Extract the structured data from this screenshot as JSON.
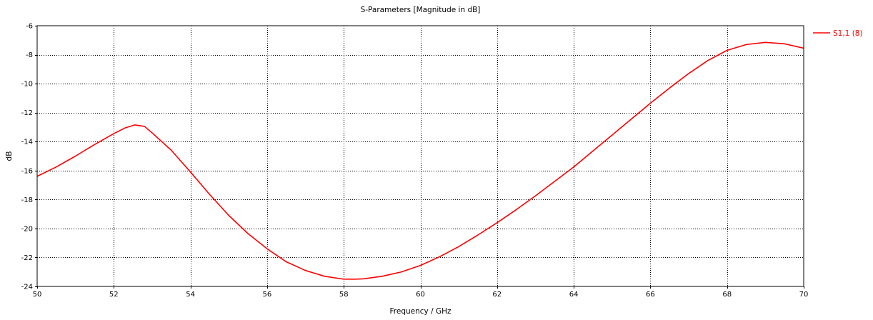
{
  "chart_data": {
    "type": "line",
    "title": "S-Parameters [Magnitude in dB]",
    "xlabel": "Frequency / GHz",
    "ylabel": "dB",
    "xlim": [
      50,
      70
    ],
    "ylim": [
      -24,
      -6
    ],
    "xticks": [
      50,
      52,
      54,
      56,
      58,
      60,
      62,
      64,
      66,
      68,
      70
    ],
    "yticks": [
      -24,
      -22,
      -20,
      -18,
      -16,
      -14,
      -12,
      -10,
      -8,
      -6
    ],
    "grid": true,
    "legend_position": "right",
    "series": [
      {
        "name": "S1,1 (8)",
        "color": "#ff0000",
        "x": [
          50,
          50.5,
          51,
          51.5,
          52,
          52.3,
          52.55,
          52.8,
          53,
          53.5,
          54,
          54.5,
          55,
          55.5,
          56,
          56.5,
          57,
          57.5,
          58,
          58.3,
          58.5,
          59,
          59.5,
          60,
          60.5,
          61,
          61.5,
          62,
          62.5,
          63,
          63.5,
          64,
          64.5,
          65,
          65.5,
          66,
          66.5,
          67,
          67.5,
          68,
          68.5,
          69,
          69.5,
          70
        ],
        "y": [
          -16.4,
          -15.75,
          -15.0,
          -14.2,
          -13.45,
          -13.05,
          -12.85,
          -12.95,
          -13.4,
          -14.6,
          -16.1,
          -17.65,
          -19.1,
          -20.35,
          -21.4,
          -22.3,
          -22.9,
          -23.3,
          -23.5,
          -23.5,
          -23.48,
          -23.3,
          -23.0,
          -22.55,
          -21.95,
          -21.25,
          -20.45,
          -19.6,
          -18.7,
          -17.75,
          -16.75,
          -15.75,
          -14.65,
          -13.55,
          -12.45,
          -11.35,
          -10.3,
          -9.3,
          -8.4,
          -7.7,
          -7.3,
          -7.15,
          -7.25,
          -7.55
        ]
      }
    ]
  }
}
